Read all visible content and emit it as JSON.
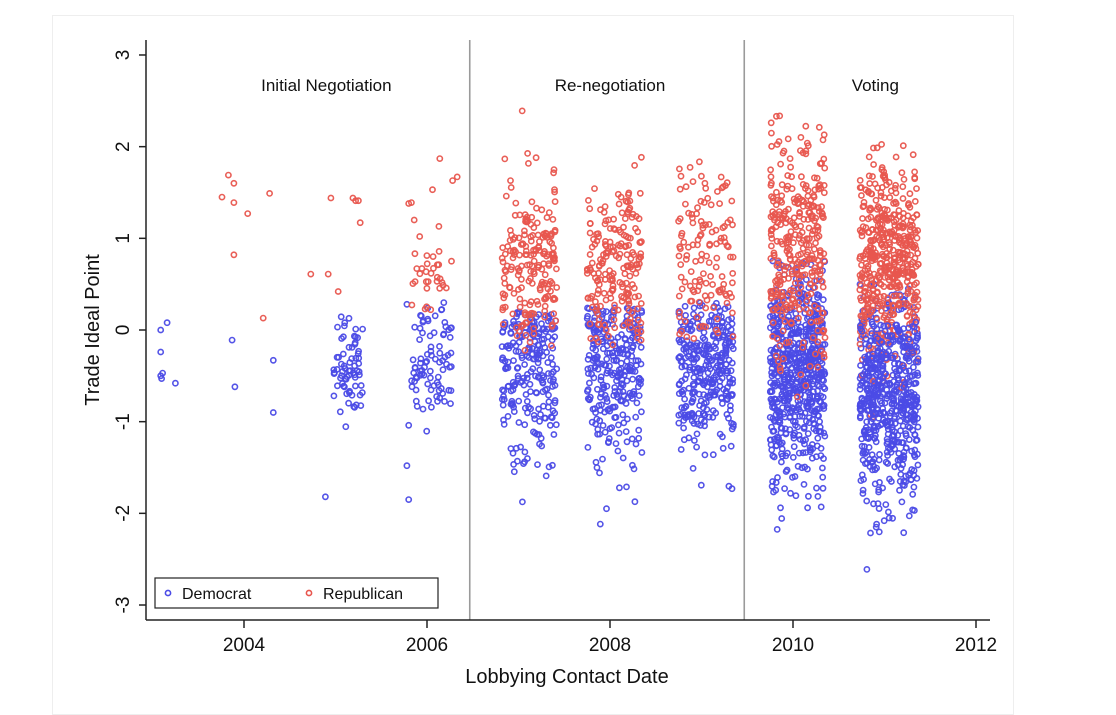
{
  "chart_data": {
    "type": "scatter",
    "title": "",
    "xlabel": "Lobbying Contact Date",
    "ylabel": "Trade Ideal Point",
    "xlim": [
      2003.0,
      2012.15
    ],
    "ylim": [
      -3.2,
      3.1
    ],
    "x_ticks": [
      2004,
      2006,
      2008,
      2010,
      2012
    ],
    "x_tick_labels": [
      "2004",
      "2006",
      "2008",
      "2010",
      "2012"
    ],
    "y_ticks": [
      3,
      2,
      1,
      0,
      -1,
      -2,
      -3
    ],
    "y_tick_labels": [
      "3",
      "2",
      "1",
      "0",
      "-1",
      "-2",
      "-3"
    ],
    "grid": false,
    "legend_position": "bottom-left",
    "phase_dividers": [
      2006.5,
      2009.5
    ],
    "phases": [
      {
        "label": "Initial Negotiation",
        "x": 2004.9
      },
      {
        "label": "Re-negotiation",
        "x": 2008.0
      },
      {
        "label": "Voting",
        "x": 2010.9
      }
    ],
    "series": [
      {
        "name": "Democrat",
        "color": "#4b4be6",
        "points": [
          [
            2003.09,
            0.0
          ],
          [
            2003.16,
            0.08
          ],
          [
            2003.09,
            -0.24
          ],
          [
            2003.09,
            -0.5
          ],
          [
            2003.11,
            -0.47
          ],
          [
            2003.1,
            -0.53
          ],
          [
            2003.25,
            -0.58
          ],
          [
            2003.87,
            -0.11
          ],
          [
            2003.9,
            -0.62
          ],
          [
            2004.32,
            -0.33
          ],
          [
            2004.32,
            -0.9
          ],
          [
            2004.89,
            -1.82
          ],
          [
            2005.8,
            -1.85
          ],
          [
            2005.78,
            -1.48
          ],
          [
            2005.8,
            -1.04
          ],
          [
            2005.78,
            0.28
          ]
        ],
        "clusters": [
          {
            "x_center": 2005.15,
            "x_spread": 0.17,
            "y_mean": -0.38,
            "y_sd": 0.28,
            "y_min": -1.12,
            "y_max": 0.17,
            "n": 70
          },
          {
            "x_center": 2006.05,
            "x_spread": 0.22,
            "y_mean": -0.38,
            "y_sd": 0.32,
            "y_min": -1.15,
            "y_max": 0.3,
            "n": 85
          },
          {
            "x_center": 2007.12,
            "x_spread": 0.3,
            "y_mean": -0.42,
            "y_sd": 0.5,
            "y_min": -1.9,
            "y_max": 0.2,
            "n": 230
          },
          {
            "x_center": 2008.05,
            "x_spread": 0.3,
            "y_mean": -0.45,
            "y_sd": 0.5,
            "y_min": -2.3,
            "y_max": 0.25,
            "n": 280
          },
          {
            "x_center": 2009.05,
            "x_spread": 0.3,
            "y_mean": -0.42,
            "y_sd": 0.45,
            "y_min": -2.25,
            "y_max": 0.3,
            "n": 320
          },
          {
            "x_center": 2010.05,
            "x_spread": 0.3,
            "y_mean": -0.5,
            "y_sd": 0.55,
            "y_min": -2.3,
            "y_max": 0.8,
            "n": 620
          },
          {
            "x_center": 2011.05,
            "x_spread": 0.32,
            "y_mean": -0.62,
            "y_sd": 0.6,
            "y_min": -2.75,
            "y_max": 0.5,
            "n": 640
          }
        ]
      },
      {
        "name": "Republican",
        "color": "#e8564e",
        "points": [
          [
            2003.83,
            1.69
          ],
          [
            2003.89,
            1.6
          ],
          [
            2003.76,
            1.45
          ],
          [
            2003.89,
            1.39
          ],
          [
            2004.04,
            1.27
          ],
          [
            2003.89,
            0.82
          ],
          [
            2004.28,
            1.49
          ],
          [
            2004.21,
            0.13
          ],
          [
            2004.73,
            0.61
          ],
          [
            2004.92,
            0.61
          ],
          [
            2005.03,
            0.42
          ],
          [
            2004.95,
            1.44
          ],
          [
            2005.19,
            1.44
          ],
          [
            2005.22,
            1.41
          ],
          [
            2005.25,
            1.41
          ],
          [
            2005.27,
            1.17
          ],
          [
            2006.14,
            1.87
          ],
          [
            2006.28,
            1.63
          ],
          [
            2006.33,
            1.67
          ],
          [
            2006.06,
            1.53
          ],
          [
            2005.8,
            1.38
          ],
          [
            2005.83,
            1.39
          ],
          [
            2005.86,
            1.2
          ],
          [
            2005.92,
            1.02
          ],
          [
            2006.13,
            1.13
          ],
          [
            2007.04,
            2.39
          ]
        ],
        "clusters": [
          {
            "x_center": 2006.05,
            "x_spread": 0.22,
            "y_mean": 0.6,
            "y_sd": 0.2,
            "y_min": 0.2,
            "y_max": 0.95,
            "n": 30
          },
          {
            "x_center": 2007.12,
            "x_spread": 0.3,
            "y_mean": 0.75,
            "y_sd": 0.45,
            "y_min": -0.3,
            "y_max": 2.0,
            "n": 200
          },
          {
            "x_center": 2008.05,
            "x_spread": 0.3,
            "y_mean": 0.7,
            "y_sd": 0.45,
            "y_min": -0.2,
            "y_max": 2.1,
            "n": 200
          },
          {
            "x_center": 2009.05,
            "x_spread": 0.3,
            "y_mean": 0.75,
            "y_sd": 0.5,
            "y_min": -0.1,
            "y_max": 1.9,
            "n": 130
          },
          {
            "x_center": 2010.05,
            "x_spread": 0.3,
            "y_mean": 0.9,
            "y_sd": 0.6,
            "y_min": -0.8,
            "y_max": 2.35,
            "n": 330
          },
          {
            "x_center": 2011.05,
            "x_spread": 0.32,
            "y_mean": 0.75,
            "y_sd": 0.55,
            "y_min": -1.4,
            "y_max": 2.1,
            "n": 480
          }
        ]
      }
    ]
  },
  "legend": {
    "items": [
      {
        "label": "Democrat",
        "color": "#4b4be6"
      },
      {
        "label": "Republican",
        "color": "#e8564e"
      }
    ]
  }
}
